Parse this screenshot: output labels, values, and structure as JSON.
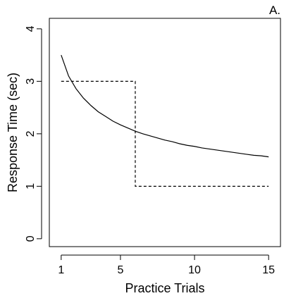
{
  "chart_data": {
    "type": "line",
    "panel_label": "A.",
    "xlabel": "Practice Trials",
    "ylabel": "Response Time (sec)",
    "xlim": [
      0.2,
      15.8
    ],
    "ylim": [
      -0.15,
      4.2
    ],
    "x_ticks": [
      1,
      5,
      10,
      15
    ],
    "y_ticks": [
      0,
      1,
      2,
      3,
      4
    ],
    "grid": false,
    "legend": "none",
    "series": [
      {
        "style": "solid",
        "x": [
          1,
          1.5,
          2,
          2.5,
          3,
          3.5,
          4,
          4.5,
          5,
          5.5,
          6,
          6.5,
          7,
          7.5,
          8,
          8.5,
          9,
          9.5,
          10,
          10.5,
          11,
          11.5,
          12,
          12.5,
          13,
          13.5,
          14,
          14.5,
          15
        ],
        "y": [
          3.5,
          3.1,
          2.86,
          2.68,
          2.54,
          2.42,
          2.33,
          2.24,
          2.17,
          2.11,
          2.05,
          2.0,
          1.96,
          1.92,
          1.88,
          1.85,
          1.81,
          1.78,
          1.76,
          1.73,
          1.71,
          1.69,
          1.67,
          1.65,
          1.63,
          1.61,
          1.59,
          1.58,
          1.56
        ]
      },
      {
        "style": "dashed",
        "step": true,
        "x": [
          1,
          6,
          6,
          15
        ],
        "y": [
          3,
          3,
          1,
          1
        ]
      }
    ]
  }
}
